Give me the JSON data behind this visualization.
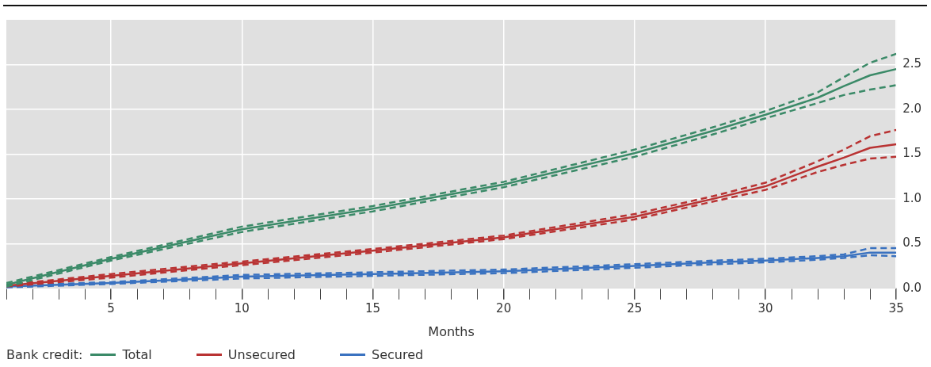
{
  "chart_data": {
    "type": "line",
    "xlabel": "Months",
    "legend_title": "Bank credit:",
    "legend": "bottom",
    "grid": true,
    "line_style": "solid",
    "marker": "none",
    "x": [
      1,
      5,
      10,
      15,
      20,
      25,
      28,
      30,
      32,
      33,
      34,
      35
    ],
    "xlim": [
      1,
      35
    ],
    "xticks": [
      {
        "value": 1,
        "label": null
      },
      {
        "value": 2,
        "label": null
      },
      {
        "value": 3,
        "label": null
      },
      {
        "value": 4,
        "label": null
      },
      5,
      {
        "value": 6,
        "label": null
      },
      {
        "value": 7,
        "label": null
      },
      {
        "value": 8,
        "label": null
      },
      {
        "value": 9,
        "label": null
      },
      10,
      {
        "value": 11,
        "label": null
      },
      {
        "value": 12,
        "label": null
      },
      {
        "value": 13,
        "label": null
      },
      {
        "value": 14,
        "label": null
      },
      15,
      {
        "value": 16,
        "label": null
      },
      {
        "value": 17,
        "label": null
      },
      {
        "value": 18,
        "label": null
      },
      {
        "value": 19,
        "label": null
      },
      20,
      {
        "value": 21,
        "label": null
      },
      {
        "value": 22,
        "label": null
      },
      {
        "value": 23,
        "label": null
      },
      {
        "value": 24,
        "label": null
      },
      25,
      {
        "value": 26,
        "label": null
      },
      {
        "value": 27,
        "label": null
      },
      {
        "value": 28,
        "label": null
      },
      {
        "value": 29,
        "label": null
      },
      30,
      {
        "value": 31,
        "label": null
      },
      {
        "value": 32,
        "label": null
      },
      {
        "value": 33,
        "label": null
      },
      {
        "value": 34,
        "label": null
      },
      35
    ],
    "ylim": [
      0,
      3
    ],
    "yticks": [
      {
        "value": 0,
        "label": "0.0"
      },
      0.5,
      {
        "value": 1,
        "label": "1.0"
      },
      1.5,
      {
        "value": 2,
        "label": "2.0"
      },
      2.5
    ],
    "series": [
      {
        "name": "Total",
        "color": "#3b8a68",
        "values": [
          0.04,
          0.33,
          0.66,
          0.89,
          1.16,
          1.51,
          1.76,
          1.94,
          2.13,
          2.26,
          2.38,
          2.45
        ]
      },
      {
        "color": "#3b8a68",
        "line_style": "dashed",
        "values": [
          0.02,
          0.31,
          0.63,
          0.86,
          1.13,
          1.47,
          1.72,
          1.9,
          2.07,
          2.16,
          2.22,
          2.27
        ]
      },
      {
        "color": "#3b8a68",
        "line_style": "dashed",
        "values": [
          0.06,
          0.35,
          0.69,
          0.92,
          1.19,
          1.55,
          1.8,
          1.98,
          2.19,
          2.36,
          2.52,
          2.62
        ]
      },
      {
        "name": "Unsecured",
        "color": "#b93333",
        "values": [
          0.03,
          0.14,
          0.28,
          0.42,
          0.57,
          0.8,
          1.0,
          1.14,
          1.36,
          1.46,
          1.57,
          1.61
        ]
      },
      {
        "color": "#b93333",
        "line_style": "dashed",
        "values": [
          0.02,
          0.12,
          0.26,
          0.4,
          0.55,
          0.77,
          0.97,
          1.1,
          1.3,
          1.38,
          1.45,
          1.47
        ]
      },
      {
        "color": "#b93333",
        "line_style": "dashed",
        "values": [
          0.04,
          0.16,
          0.3,
          0.44,
          0.59,
          0.83,
          1.03,
          1.18,
          1.42,
          1.55,
          1.7,
          1.77
        ]
      },
      {
        "name": "Secured",
        "color": "#3a72c0",
        "values": [
          0.02,
          0.06,
          0.13,
          0.16,
          0.19,
          0.25,
          0.29,
          0.31,
          0.34,
          0.36,
          0.4,
          0.4
        ]
      },
      {
        "color": "#3a72c0",
        "line_style": "dashed",
        "values": [
          0.01,
          0.05,
          0.11,
          0.14,
          0.17,
          0.23,
          0.27,
          0.29,
          0.32,
          0.34,
          0.37,
          0.36
        ]
      },
      {
        "color": "#3a72c0",
        "line_style": "dashed",
        "values": [
          0.03,
          0.07,
          0.15,
          0.18,
          0.21,
          0.27,
          0.31,
          0.33,
          0.36,
          0.38,
          0.45,
          0.45
        ]
      }
    ]
  }
}
